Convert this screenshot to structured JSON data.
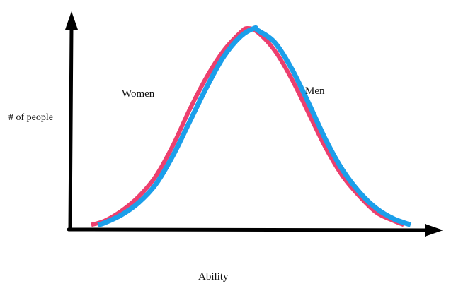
{
  "chart_data": {
    "type": "line",
    "title": "",
    "xlabel": "Ability",
    "ylabel": "# of people",
    "grid": false,
    "legend": "none",
    "xlim": [
      0,
      100
    ],
    "ylim": [
      0,
      100
    ],
    "annotations": [
      {
        "text": "Women",
        "series": "Women"
      },
      {
        "text": "Men",
        "series": "Men"
      }
    ],
    "series": [
      {
        "name": "Women",
        "color": "#ec3f6e",
        "x": [
          6,
          10,
          15,
          20,
          25,
          30,
          35,
          40,
          45,
          50,
          52,
          55,
          60,
          65,
          70,
          75,
          80,
          85,
          90,
          95,
          98
        ],
        "values": [
          3,
          5,
          10,
          17,
          27,
          42,
          60,
          76,
          89,
          98,
          100,
          98,
          89,
          75,
          58,
          41,
          27,
          17,
          9,
          5,
          3
        ]
      },
      {
        "name": "Men",
        "color": "#1b9fea",
        "x": [
          8,
          10,
          15,
          20,
          25,
          30,
          35,
          40,
          45,
          50,
          54,
          55,
          60,
          65,
          70,
          75,
          80,
          85,
          90,
          95,
          100
        ],
        "values": [
          3,
          4,
          8,
          14,
          23,
          37,
          54,
          71,
          86,
          96,
          100,
          99,
          93,
          80,
          63,
          45,
          30,
          19,
          11,
          6,
          3
        ]
      }
    ]
  }
}
